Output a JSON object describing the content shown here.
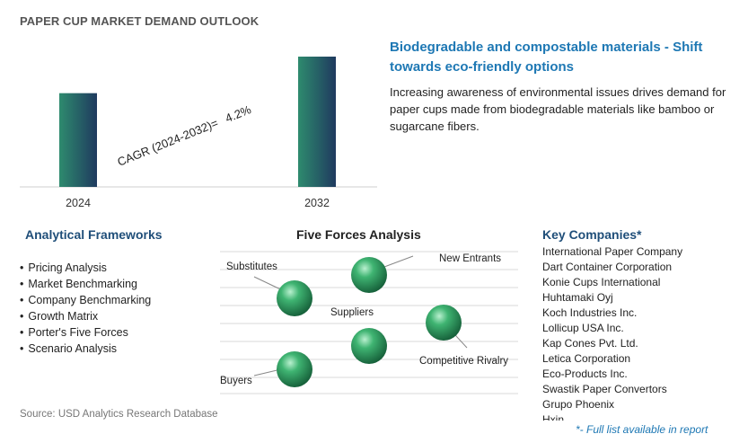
{
  "title": "PAPER CUP MARKET DEMAND OUTLOOK",
  "chart_data": {
    "type": "bar",
    "categories": [
      "2024",
      "2032"
    ],
    "values": [
      1.0,
      1.39
    ],
    "annotation": "CAGR (2024-2032)=",
    "cagr_value": "4.2%"
  },
  "highlight": {
    "title": "Biodegradable and compostable materials - Shift towards eco-friendly options",
    "body": "Increasing awareness of environmental issues drives demand for paper cups made from biodegradable materials like bamboo or sugarcane fibers."
  },
  "frameworks": {
    "title": "Analytical Frameworks",
    "items": [
      "Pricing Analysis",
      "Market Benchmarking",
      "Company Benchmarking",
      "Growth Matrix",
      "Porter's Five Forces",
      "Scenario Analysis"
    ]
  },
  "five_forces": {
    "title": "Five Forces Analysis",
    "labels": {
      "substitutes": "Substitutes",
      "new_entrants": "New Entrants",
      "suppliers": "Suppliers",
      "competitive_rivalry": "Competitive Rivalry",
      "buyers": "Buyers"
    }
  },
  "companies": {
    "title": "Key Companies*",
    "items": [
      "International Paper Company",
      "Dart Container Corporation",
      "Konie Cups International",
      "Huhtamaki Oyj",
      "Koch Industries Inc.",
      "Lollicup USA Inc.",
      "Kap Cones Pvt. Ltd.",
      "Letica Corporation",
      "Eco-Products Inc.",
      "Swastik Paper Convertors",
      "Grupo Phoenix",
      "Hxin"
    ],
    "note": "*- Full list available in report"
  },
  "source": "Source: USD Analytics Research Database",
  "colors": {
    "bar_top": "#1f3a5f",
    "bar_bottom": "#2e8b6e",
    "accent": "#1e78b4",
    "sphere": "#2e9e5e"
  }
}
